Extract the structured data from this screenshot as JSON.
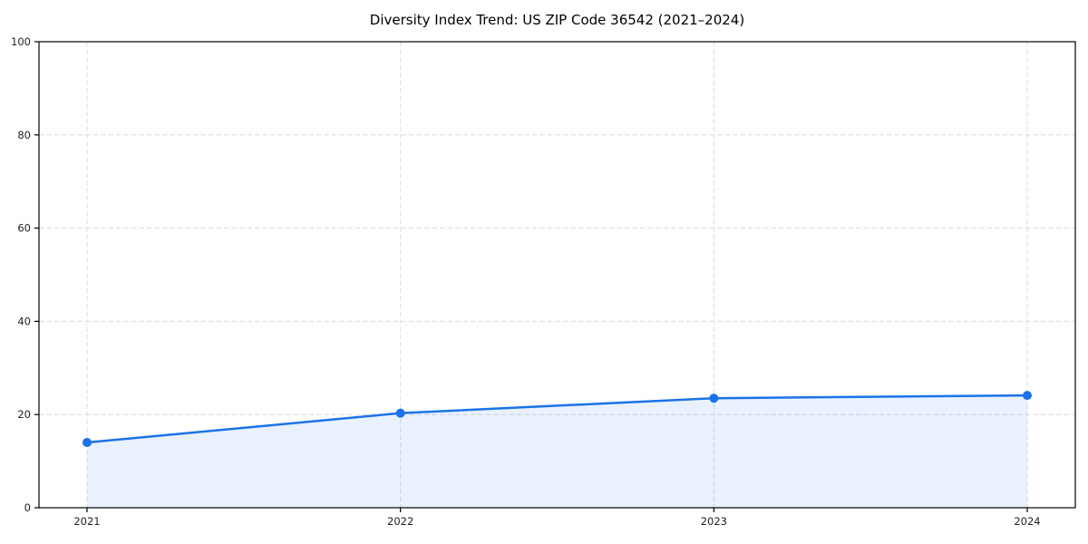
{
  "chart_data": {
    "type": "area",
    "title": "Diversity Index Trend: US ZIP Code 36542 (2021–2024)",
    "x": [
      2021,
      2022,
      2023,
      2024
    ],
    "xticklabels": [
      "2021",
      "2022",
      "2023",
      "2024"
    ],
    "series": [
      {
        "name": "Diversity Index",
        "values": [
          14.0,
          20.3,
          23.5,
          24.1
        ]
      }
    ],
    "xlabel": "",
    "ylabel": "",
    "ylim": [
      0,
      100
    ],
    "yticks": [
      0,
      20,
      40,
      60,
      80,
      100
    ],
    "grid": true,
    "legend": "none",
    "colors": {
      "line": "#1a73e8",
      "marker": "#1a73e8",
      "fill": "rgba(26,115,232,0.10)",
      "grid": "#dcdcdc",
      "spine": "#000000",
      "tick_label": "#222222",
      "background": "#ffffff"
    }
  }
}
